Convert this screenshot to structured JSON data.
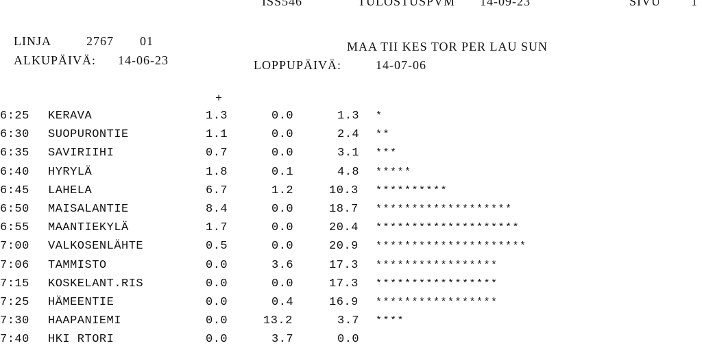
{
  "top_strip": {
    "report_id": "ISS546",
    "print_date_label": "TULOSTUSPVM",
    "print_date": "14-09-23",
    "page_label": "SIVU",
    "page_number": "1"
  },
  "header": {
    "line_label": "LINJA",
    "line_number": "2767",
    "line_variant": "01",
    "days": "MAA TII KES TOR PER LAU SUN",
    "start_label": "ALKUPÄIVÄ:",
    "start_date": "14-06-23",
    "end_label": "LOPPUPÄIVÄ:",
    "end_date": "14-07-06"
  },
  "plus_marker": "+",
  "rows": [
    {
      "time": "6:25",
      "stop": "KERAVA",
      "boarding": "1.3",
      "alighting": "0.0",
      "load": "1.3",
      "bar": "*"
    },
    {
      "time": "6:30",
      "stop": "SUOPURONTIE",
      "boarding": "1.1",
      "alighting": "0.0",
      "load": "2.4",
      "bar": "**"
    },
    {
      "time": "6:35",
      "stop": "SAVIRIIHI",
      "boarding": "0.7",
      "alighting": "0.0",
      "load": "3.1",
      "bar": "***"
    },
    {
      "time": "6:40",
      "stop": "HYRYLÄ",
      "boarding": "1.8",
      "alighting": "0.1",
      "load": "4.8",
      "bar": "*****"
    },
    {
      "time": "6:45",
      "stop": "LAHELA",
      "boarding": "6.7",
      "alighting": "1.2",
      "load": "10.3",
      "bar": "**********"
    },
    {
      "time": "6:50",
      "stop": "MAISALANTIE",
      "boarding": "8.4",
      "alighting": "0.0",
      "load": "18.7",
      "bar": "*******************"
    },
    {
      "time": "6:55",
      "stop": "MAANTIEKYLÄ",
      "boarding": "1.7",
      "alighting": "0.0",
      "load": "20.4",
      "bar": "********************"
    },
    {
      "time": "7:00",
      "stop": "VALKOSENLÄHTE",
      "boarding": "0.5",
      "alighting": "0.0",
      "load": "20.9",
      "bar": "*********************"
    },
    {
      "time": "7:06",
      "stop": "TAMMISTO",
      "boarding": "0.0",
      "alighting": "3.6",
      "load": "17.3",
      "bar": "*****************"
    },
    {
      "time": "7:15",
      "stop": "KOSKELANT.RIS",
      "boarding": "0.0",
      "alighting": "0.0",
      "load": "17.3",
      "bar": "*****************"
    },
    {
      "time": "7:25",
      "stop": "HÄMEENTIE",
      "boarding": "0.0",
      "alighting": "0.4",
      "load": "16.9",
      "bar": "*****************"
    },
    {
      "time": "7:30",
      "stop": "HAAPANIEMI",
      "boarding": "0.0",
      "alighting": "13.2",
      "load": "3.7",
      "bar": "****"
    },
    {
      "time": "7:40",
      "stop": "HKI RTORI",
      "boarding": "0.0",
      "alighting": "3.7",
      "load": "0.0",
      "bar": ""
    }
  ]
}
